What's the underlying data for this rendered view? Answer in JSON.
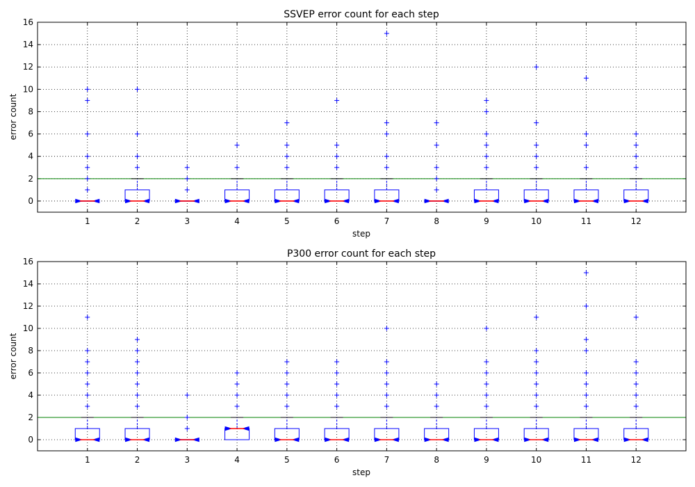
{
  "chart_data": [
    {
      "type": "box",
      "title": "SSVEP error count for each step",
      "xlabel": "step",
      "ylabel": "error count",
      "categories": [
        "1",
        "2",
        "3",
        "4",
        "5",
        "6",
        "7",
        "8",
        "9",
        "10",
        "11",
        "12"
      ],
      "ylim": [
        -1,
        16
      ],
      "yticks": [
        "0",
        "2",
        "4",
        "6",
        "8",
        "10",
        "12",
        "14",
        "16"
      ],
      "grid": true,
      "reference_line": 2,
      "boxes": [
        {
          "q1": 0,
          "median": 0,
          "q3": 0,
          "whisker_low": 0,
          "whisker_high": 0,
          "outliers": [
            1,
            2,
            3,
            4,
            6,
            9,
            10
          ]
        },
        {
          "q1": 0,
          "median": 0,
          "q3": 1,
          "whisker_low": 0,
          "whisker_high": 2,
          "outliers": [
            3,
            4,
            6,
            10
          ]
        },
        {
          "q1": 0,
          "median": 0,
          "q3": 0,
          "whisker_low": 0,
          "whisker_high": 0,
          "outliers": [
            1,
            2,
            3
          ]
        },
        {
          "q1": 0,
          "median": 0,
          "q3": 1,
          "whisker_low": 0,
          "whisker_high": 2,
          "outliers": [
            3,
            5
          ]
        },
        {
          "q1": 0,
          "median": 0,
          "q3": 1,
          "whisker_low": 0,
          "whisker_high": 2,
          "outliers": [
            3,
            4,
            5,
            7
          ]
        },
        {
          "q1": 0,
          "median": 0,
          "q3": 1,
          "whisker_low": 0,
          "whisker_high": 2,
          "outliers": [
            3,
            4,
            5,
            9
          ]
        },
        {
          "q1": 0,
          "median": 0,
          "q3": 1,
          "whisker_low": 0,
          "whisker_high": 2,
          "outliers": [
            3,
            4,
            6,
            7,
            15
          ]
        },
        {
          "q1": 0,
          "median": 0,
          "q3": 0,
          "whisker_low": 0,
          "whisker_high": 0,
          "outliers": [
            1,
            2,
            3,
            5,
            7
          ]
        },
        {
          "q1": 0,
          "median": 0,
          "q3": 1,
          "whisker_low": 0,
          "whisker_high": 2,
          "outliers": [
            3,
            4,
            5,
            6,
            8,
            9
          ]
        },
        {
          "q1": 0,
          "median": 0,
          "q3": 1,
          "whisker_low": 0,
          "whisker_high": 2,
          "outliers": [
            3,
            4,
            5,
            7,
            12
          ]
        },
        {
          "q1": 0,
          "median": 0,
          "q3": 1,
          "whisker_low": 0,
          "whisker_high": 2,
          "outliers": [
            3,
            5,
            6,
            11
          ]
        },
        {
          "q1": 0,
          "median": 0,
          "q3": 1,
          "whisker_low": 0,
          "whisker_high": 2,
          "outliers": [
            3,
            4,
            5,
            6
          ]
        }
      ]
    },
    {
      "type": "box",
      "title": "P300 error count for each step",
      "xlabel": "step",
      "ylabel": "error count",
      "categories": [
        "1",
        "2",
        "3",
        "4",
        "5",
        "6",
        "7",
        "8",
        "9",
        "10",
        "11",
        "12"
      ],
      "ylim": [
        -1,
        16
      ],
      "yticks": [
        "0",
        "2",
        "4",
        "6",
        "8",
        "10",
        "12",
        "14",
        "16"
      ],
      "grid": true,
      "reference_line": 2,
      "boxes": [
        {
          "q1": 0,
          "median": 0,
          "q3": 1,
          "whisker_low": 0,
          "whisker_high": 2,
          "outliers": [
            3,
            4,
            5,
            6,
            7,
            8,
            11
          ]
        },
        {
          "q1": 0,
          "median": 0,
          "q3": 1,
          "whisker_low": 0,
          "whisker_high": 2,
          "outliers": [
            3,
            4,
            5,
            6,
            7,
            8,
            9
          ]
        },
        {
          "q1": 0,
          "median": 0,
          "q3": 0,
          "whisker_low": 0,
          "whisker_high": 0,
          "outliers": [
            1,
            2,
            4
          ]
        },
        {
          "q1": 0,
          "median": 1,
          "q3": 1,
          "whisker_low": 0,
          "whisker_high": 2,
          "outliers": [
            3,
            4,
            5,
            6
          ]
        },
        {
          "q1": 0,
          "median": 0,
          "q3": 1,
          "whisker_low": 0,
          "whisker_high": 2,
          "outliers": [
            3,
            4,
            5,
            6,
            7
          ]
        },
        {
          "q1": 0,
          "median": 0,
          "q3": 1,
          "whisker_low": 0,
          "whisker_high": 2,
          "outliers": [
            3,
            4,
            5,
            6,
            7
          ]
        },
        {
          "q1": 0,
          "median": 0,
          "q3": 1,
          "whisker_low": 0,
          "whisker_high": 2,
          "outliers": [
            3,
            4,
            5,
            6,
            7,
            10
          ]
        },
        {
          "q1": 0,
          "median": 0,
          "q3": 1,
          "whisker_low": 0,
          "whisker_high": 2,
          "outliers": [
            3,
            4,
            5
          ]
        },
        {
          "q1": 0,
          "median": 0,
          "q3": 1,
          "whisker_low": 0,
          "whisker_high": 2,
          "outliers": [
            3,
            4,
            5,
            6,
            7,
            10
          ]
        },
        {
          "q1": 0,
          "median": 0,
          "q3": 1,
          "whisker_low": 0,
          "whisker_high": 2,
          "outliers": [
            3,
            4,
            5,
            6,
            7,
            8,
            11
          ]
        },
        {
          "q1": 0,
          "median": 0,
          "q3": 1,
          "whisker_low": 0,
          "whisker_high": 2,
          "outliers": [
            3,
            4,
            5,
            6,
            8,
            9,
            12,
            15
          ]
        },
        {
          "q1": 0,
          "median": 0,
          "q3": 1,
          "whisker_low": 0,
          "whisker_high": 2,
          "outliers": [
            3,
            4,
            5,
            6,
            7,
            11
          ]
        }
      ]
    }
  ],
  "colors": {
    "box": "#0000ff",
    "median": "#ff0000",
    "notch": "#0000ff",
    "reference_line": "#008000",
    "grid": "#000000",
    "outlier": "#0000ff"
  }
}
